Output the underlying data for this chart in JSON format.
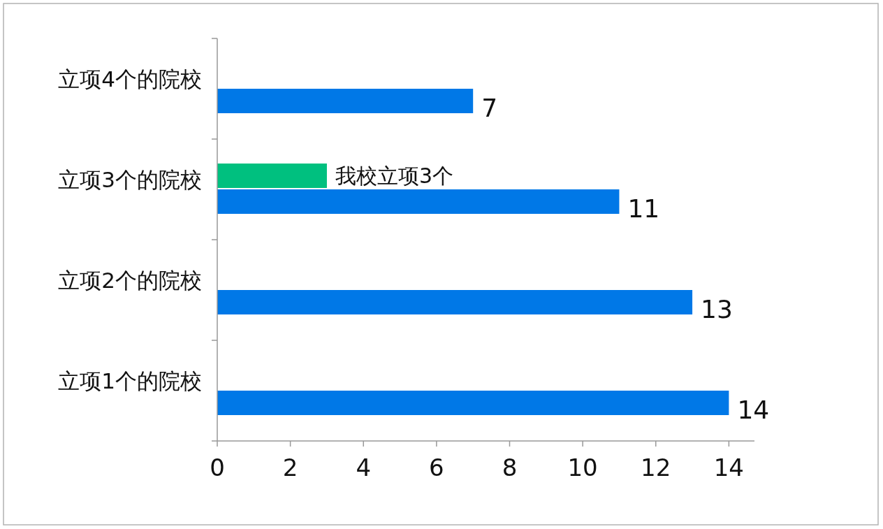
{
  "chart_data": {
    "type": "bar",
    "orientation": "horizontal",
    "categories": [
      "立项4个的院校",
      "立项3个的院校",
      "立项2个的院校",
      "立项1个的院校"
    ],
    "series": [
      {
        "name": "我校立项3个",
        "color": "#00c07f",
        "values": [
          null,
          3,
          null,
          null
        ]
      },
      {
        "color": "#0078e7",
        "values": [
          7,
          11,
          13,
          14
        ],
        "value_labels": [
          "7",
          "11",
          "13",
          "14"
        ]
      }
    ],
    "xlim": [
      0,
      14.7
    ],
    "xticks": [
      0,
      2,
      4,
      6,
      8,
      10,
      12,
      14
    ],
    "grid": false
  }
}
